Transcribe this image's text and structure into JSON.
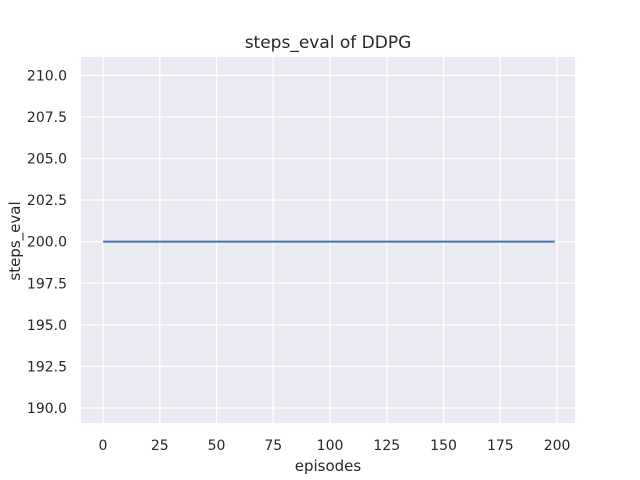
{
  "figure": {
    "background": "#ffffff"
  },
  "chart_data": {
    "type": "line",
    "title": "steps_eval of DDPG",
    "xlabel": "episodes",
    "ylabel": "steps_eval",
    "xlim": [
      -9.7,
      207.9
    ],
    "ylim": [
      189.1,
      211.1
    ],
    "xticks": {
      "values": [
        0,
        25,
        50,
        75,
        100,
        125,
        150,
        175,
        200
      ],
      "labels": [
        "0",
        "25",
        "50",
        "75",
        "100",
        "125",
        "150",
        "175",
        "200"
      ]
    },
    "yticks": {
      "values": [
        190.0,
        192.5,
        195.0,
        197.5,
        200.0,
        202.5,
        205.0,
        207.5,
        210.0
      ],
      "labels": [
        "190.0",
        "192.5",
        "195.0",
        "197.5",
        "200.0",
        "202.5",
        "205.0",
        "207.5",
        "210.0"
      ]
    },
    "grid": true,
    "legend": "none",
    "series": [
      {
        "name": "steps_eval",
        "color": "#4c72b0",
        "x": [
          0,
          199
        ],
        "y": [
          200,
          200
        ],
        "note": "constant value 200 for every evaluated episode from 0 to 199"
      }
    ],
    "colors": {
      "figure_background": "#ffffff",
      "plot_background": "#eaeaf2",
      "grid": "#ffffff",
      "text": "#262626",
      "line": "#4c72b0"
    }
  }
}
